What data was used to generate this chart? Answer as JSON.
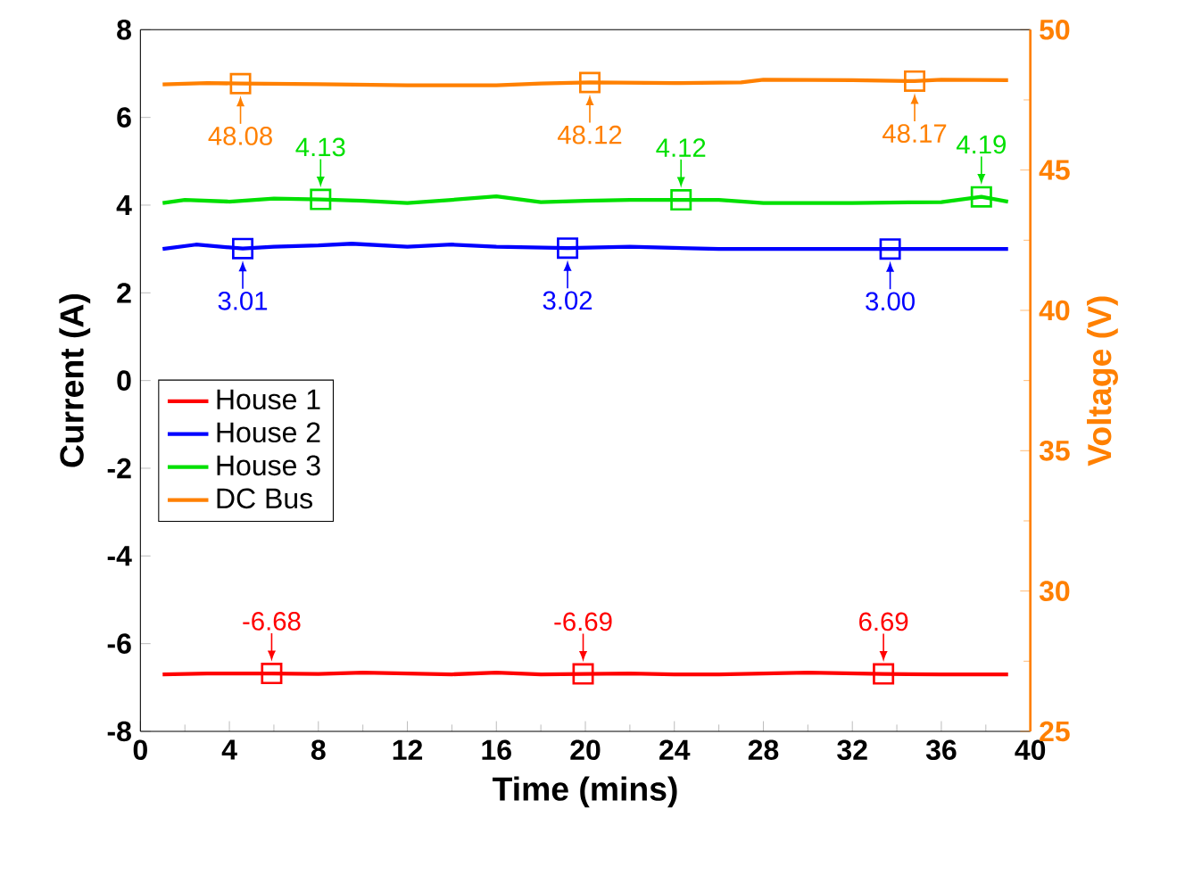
{
  "chart_data": {
    "type": "line",
    "xlabel": "Time (mins)",
    "ylabel": "Current (A)",
    "y2label": "Voltage (V)",
    "xlim": [
      0,
      40
    ],
    "xticks": [
      0,
      4,
      8,
      12,
      16,
      20,
      24,
      28,
      32,
      36,
      40
    ],
    "ylim": [
      -8,
      8
    ],
    "yticks": [
      -8,
      -6,
      -4,
      -2,
      0,
      2,
      4,
      6,
      8
    ],
    "y2lim": [
      25,
      50
    ],
    "y2ticks": [
      25,
      30,
      35,
      40,
      45,
      50
    ],
    "legend": "left",
    "annotations": [
      {
        "text": "6.69",
        "x": 33.4,
        "y": -6.69
      }
    ],
    "series": [
      {
        "name": "House 1",
        "color": "#ff0000",
        "x": [
          1,
          3,
          5.9,
          8,
          10,
          12,
          14,
          16,
          18,
          19.9,
          22,
          24,
          26,
          28,
          30,
          33.4,
          36,
          39
        ],
        "values": [
          -6.7,
          -6.68,
          -6.68,
          -6.69,
          -6.66,
          -6.68,
          -6.7,
          -6.66,
          -6.7,
          -6.69,
          -6.68,
          -6.7,
          -6.7,
          -6.68,
          -6.66,
          -6.69,
          -6.7,
          -6.7
        ]
      },
      {
        "name": "House 2",
        "color": "#0000ff",
        "x": [
          1,
          2.5,
          4.6,
          6,
          8,
          9.5,
          12,
          14,
          16,
          19.2,
          22,
          26,
          30,
          33.7,
          36,
          39
        ],
        "values": [
          3.0,
          3.1,
          3.01,
          3.05,
          3.08,
          3.12,
          3.05,
          3.1,
          3.05,
          3.02,
          3.05,
          3.0,
          3.0,
          3.0,
          3.0,
          3.0
        ]
      },
      {
        "name": "House 3",
        "color": "#00e000",
        "x": [
          1,
          2,
          4,
          6,
          8.1,
          10,
          12,
          14,
          16,
          18,
          20,
          22,
          24.3,
          26,
          28,
          32,
          36,
          37.8,
          39
        ],
        "values": [
          4.05,
          4.12,
          4.08,
          4.15,
          4.13,
          4.1,
          4.05,
          4.12,
          4.2,
          4.07,
          4.1,
          4.12,
          4.12,
          4.12,
          4.05,
          4.05,
          4.07,
          4.19,
          4.08
        ]
      },
      {
        "name": "DC Bus",
        "color": "#ff8000",
        "axis": "y2",
        "x": [
          1,
          3,
          4.5,
          8,
          12,
          16,
          18,
          20.2,
          24,
          27,
          28,
          32,
          34.8,
          36,
          39
        ],
        "values": [
          48.05,
          48.1,
          48.08,
          48.06,
          48.02,
          48.02,
          48.08,
          48.12,
          48.1,
          48.12,
          48.22,
          48.2,
          48.17,
          48.22,
          48.2
        ]
      },
      {
        "type": "scatter",
        "marker": "square",
        "color": "#ff0000",
        "x": [
          5.9,
          19.9,
          33.4
        ],
        "values": [
          -6.68,
          -6.69,
          -6.69
        ],
        "value_labels": [
          "-6.68",
          "-6.69",
          null
        ]
      },
      {
        "type": "scatter",
        "marker": "square",
        "color": "#0000ff",
        "x": [
          4.6,
          19.2,
          33.7
        ],
        "values": [
          3.01,
          3.02,
          3.0
        ],
        "value_labels": [
          "3.01",
          "3.02",
          "3.00"
        ]
      },
      {
        "type": "scatter",
        "marker": "square",
        "color": "#00e000",
        "x": [
          8.1,
          24.3,
          37.8
        ],
        "values": [
          4.13,
          4.12,
          4.19
        ],
        "value_labels": [
          "4.13",
          "4.12",
          "4.19"
        ]
      },
      {
        "type": "scatter",
        "marker": "square",
        "color": "#ff8000",
        "axis": "y2",
        "x": [
          4.5,
          20.2,
          34.8
        ],
        "values": [
          48.08,
          48.12,
          48.17
        ],
        "value_labels": [
          "48.08",
          "48.12",
          "48.17"
        ]
      }
    ]
  }
}
